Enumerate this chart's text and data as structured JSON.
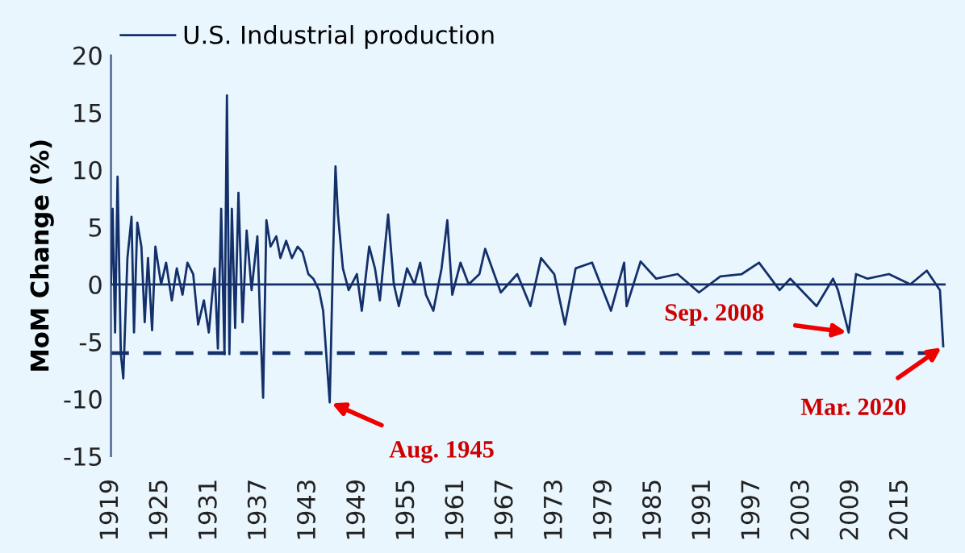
{
  "chart_data": {
    "type": "line",
    "ylabel": "MoM Change (%)",
    "x": [
      1919.0,
      1919.2,
      1919.5,
      1919.8,
      1920.2,
      1920.5,
      1921.0,
      1921.5,
      1921.8,
      1922.2,
      1922.7,
      1923.1,
      1923.5,
      1924.0,
      1924.4,
      1925.1,
      1925.7,
      1926.4,
      1927.0,
      1927.7,
      1928.3,
      1929.0,
      1929.6,
      1930.3,
      1930.9,
      1931.6,
      1932.0,
      1932.4,
      1932.8,
      1933.1,
      1933.4,
      1933.7,
      1934.1,
      1934.5,
      1935.0,
      1935.5,
      1936.1,
      1936.8,
      1937.1,
      1937.5,
      1937.9,
      1938.4,
      1939.1,
      1939.6,
      1940.3,
      1941.0,
      1941.7,
      1942.3,
      1943.0,
      1943.6,
      1944.3,
      1944.8,
      1945.6,
      1946.0,
      1946.3,
      1946.6,
      1947.2,
      1947.9,
      1948.9,
      1949.5,
      1950.4,
      1951.1,
      1951.7,
      1952.7,
      1953.4,
      1954.0,
      1955.0,
      1955.9,
      1956.6,
      1957.3,
      1958.2,
      1959.2,
      1959.9,
      1960.5,
      1961.5,
      1962.5,
      1963.8,
      1964.5,
      1966.4,
      1968.4,
      1970.0,
      1971.3,
      1972.9,
      1974.2,
      1975.5,
      1977.5,
      1979.8,
      1981.4,
      1981.7,
      1983.4,
      1985.3,
      1987.9,
      1990.5,
      1993.1,
      1995.7,
      1997.8,
      2000.3,
      2001.6,
      2004.8,
      2006.8,
      2007.4,
      2008.7,
      2009.6,
      2011.0,
      2013.6,
      2016.2,
      2018.2,
      2019.8,
      2020.2
    ],
    "series": [
      {
        "name": "U.S. Industrial production",
        "color": "#13306a",
        "values": [
          0,
          6.6,
          -4.2,
          9.4,
          -6.1,
          -8.2,
          2.3,
          5.9,
          -4.2,
          5.4,
          3.3,
          -3.3,
          2.3,
          -4.0,
          3.3,
          0,
          1.9,
          -1.4,
          1.4,
          -0.9,
          1.9,
          0.9,
          -3.5,
          -1.4,
          -4.2,
          1.4,
          -5.6,
          6.6,
          -6.1,
          16.5,
          -6.1,
          6.6,
          -3.8,
          8.0,
          -3.3,
          4.7,
          -0.5,
          4.2,
          -2.3,
          -9.9,
          5.6,
          3.3,
          4.2,
          2.3,
          3.8,
          2.3,
          3.3,
          2.8,
          0.9,
          0.5,
          -0.5,
          -2.3,
          -10.3,
          2.3,
          10.3,
          6.1,
          1.4,
          -0.5,
          0.9,
          -2.3,
          3.3,
          1.4,
          -1.4,
          6.1,
          0,
          -1.9,
          1.4,
          0,
          1.9,
          -0.9,
          -2.3,
          1.4,
          5.6,
          -0.9,
          1.9,
          0,
          0.9,
          3.1,
          -0.7,
          0.9,
          -1.9,
          2.3,
          0.9,
          -3.5,
          1.4,
          1.9,
          -2.3,
          1.9,
          -1.9,
          2.0,
          0.5,
          0.9,
          -0.7,
          0.7,
          0.9,
          1.9,
          -0.5,
          0.5,
          -1.9,
          0.5,
          -0.5,
          -4.2,
          0.9,
          0.5,
          0.9,
          0,
          1.2,
          -0.5,
          -5.4
        ]
      }
    ],
    "xlim": [
      1919,
      2020.5
    ],
    "xticks": [
      1919,
      1925,
      1931,
      1937,
      1943,
      1949,
      1955,
      1961,
      1967,
      1973,
      1979,
      1985,
      1991,
      1997,
      2003,
      2009,
      2015
    ],
    "ylim": [
      -15,
      20
    ],
    "yticks": [
      -15,
      -10,
      -5,
      0,
      5,
      10,
      15,
      20
    ],
    "ref_lines": [
      {
        "axis": "y",
        "value": 0,
        "color": "#13306a",
        "line_style": "solid"
      },
      {
        "axis": "y",
        "value": -6,
        "color": "#13306a",
        "line_style": "dashed"
      }
    ],
    "annotations": [
      {
        "text": "Aug. 1945",
        "x": 1945.6,
        "y": -10.3
      },
      {
        "text": "Sep. 2008",
        "x": 2008.7,
        "y": -4.2
      },
      {
        "text": "Mar. 2020",
        "x": 2020.2,
        "y": -5.4
      }
    ],
    "legend": "top left",
    "grid": false,
    "marker": "none",
    "line_style": "solid"
  }
}
